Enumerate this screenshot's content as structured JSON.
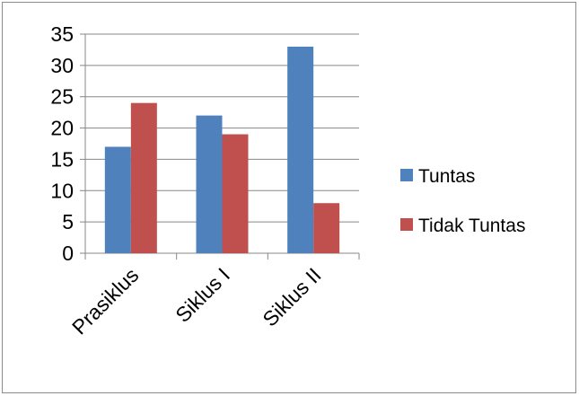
{
  "chart_data": {
    "type": "bar",
    "categories": [
      "Prasiklus",
      "Siklus I",
      "Siklus II"
    ],
    "series": [
      {
        "name": "Tuntas",
        "values": [
          17,
          22,
          33
        ],
        "color": "#4f81bd"
      },
      {
        "name": "Tidak Tuntas",
        "values": [
          24,
          19,
          8
        ],
        "color": "#c0504d"
      }
    ],
    "ylim": [
      0,
      35
    ],
    "yticks": [
      0,
      5,
      10,
      15,
      20,
      25,
      30,
      35
    ],
    "grid": true,
    "legend_position": "right",
    "title": "",
    "xlabel": "",
    "ylabel": ""
  }
}
